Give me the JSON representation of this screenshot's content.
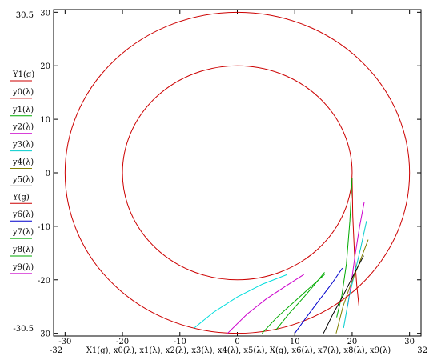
{
  "chart_data": {
    "type": "line",
    "xlim": [
      -32,
      32
    ],
    "ylim": [
      -30.5,
      30.5
    ],
    "ylim_labels": {
      "top": "30.5",
      "bottom": "-30.5"
    },
    "xlim_labels": {
      "left": "-32",
      "right": "32"
    },
    "xlabel": "X1(g), x0(λ), x1(λ), x2(λ), x3(λ), x4(λ), x5(λ), X(g), x6(λ), x7(λ), x8(λ), x9(λ)",
    "ylabel": "",
    "grid": false,
    "legend_position": "left",
    "x_ticks": [
      {
        "v": -30,
        "label": "-30"
      },
      {
        "v": -20,
        "label": "-20"
      },
      {
        "v": -10,
        "label": "-10"
      },
      {
        "v": 0,
        "label": "0"
      },
      {
        "v": 10,
        "label": "10"
      },
      {
        "v": 20,
        "label": "20"
      },
      {
        "v": 30,
        "label": "30"
      }
    ],
    "y_ticks": [
      {
        "v": 30,
        "label": "30"
      },
      {
        "v": 20,
        "label": "20"
      },
      {
        "v": 10,
        "label": "10"
      },
      {
        "v": 0,
        "label": "0"
      },
      {
        "v": -10,
        "label": "-10"
      },
      {
        "v": -20,
        "label": "-20"
      },
      {
        "v": -30,
        "label": "-30"
      }
    ],
    "series": [
      {
        "name": "Y1(g)",
        "color": "#cc0000",
        "kind": "circle",
        "center": [
          0,
          0
        ],
        "radius": 20
      },
      {
        "name": "y0(λ)",
        "color": "#cc0000",
        "x": [
          20,
          20.1,
          20.4,
          20.8,
          21.2
        ],
        "y": [
          -1,
          -8,
          -15,
          -21,
          -25
        ]
      },
      {
        "name": "y1(λ)",
        "color": "#00aa00",
        "x": [
          20,
          19.6,
          19,
          18.2,
          17.3
        ],
        "y": [
          -1,
          -9,
          -17,
          -23,
          -27
        ]
      },
      {
        "name": "y2(λ)",
        "color": "#cc00cc",
        "x": [
          22.1,
          21.3,
          20.5,
          19.8,
          19.2
        ],
        "y": [
          -5.5,
          -10,
          -15.5,
          -21,
          -25
        ]
      },
      {
        "name": "y3(λ)",
        "color": "#00cccc",
        "x": [
          22.5,
          21.5,
          20.5,
          19.5,
          18.5
        ],
        "y": [
          -9,
          -14,
          -18.5,
          -23,
          -29
        ]
      },
      {
        "name": "y4(λ)",
        "color": "#808000",
        "x": [
          22.8,
          21.2,
          19.7,
          18.4,
          17.2
        ],
        "y": [
          -12.5,
          -17,
          -21,
          -25,
          -30
        ]
      },
      {
        "name": "y5(λ)",
        "color": "#000000",
        "x": [
          22,
          20.3,
          18.4,
          16.6,
          15
        ],
        "y": [
          -15.5,
          -19,
          -23,
          -26.5,
          -30
        ]
      },
      {
        "name": "Y(g)",
        "color": "#cc0000",
        "kind": "circle",
        "center": [
          0,
          0
        ],
        "radius": 30
      },
      {
        "name": "y6(λ)",
        "color": "#0000cc",
        "x": [
          18.3,
          16.4,
          14.4,
          12.3,
          10
        ],
        "y": [
          -17.8,
          -20.8,
          -23.6,
          -26.6,
          -30
        ]
      },
      {
        "name": "y7(λ)",
        "color": "#00aa00",
        "x": [
          15.2,
          13.3,
          11.3,
          9.1,
          6.7
        ],
        "y": [
          -18.6,
          -21.1,
          -23.6,
          -26.2,
          -29.4
        ]
      },
      {
        "name": "y8(λ)",
        "color": "#00aa00",
        "x": [
          15.2,
          12.4,
          9.6,
          6.8,
          4.3
        ],
        "y": [
          -19,
          -21.7,
          -24.4,
          -27.1,
          -30
        ]
      },
      {
        "name": "y9(λ)",
        "color": "#cc00cc",
        "x": [
          11.6,
          8.4,
          5,
          1.7,
          -1.7
        ],
        "y": [
          -19,
          -21.2,
          -23.6,
          -26.4,
          -30
        ]
      },
      {
        "name": "",
        "color": "#00dddd",
        "x": [
          8.7,
          4.4,
          0,
          -4.2,
          -7.5
        ],
        "y": [
          -19,
          -20.8,
          -23.2,
          -26.1,
          -29
        ]
      }
    ]
  }
}
